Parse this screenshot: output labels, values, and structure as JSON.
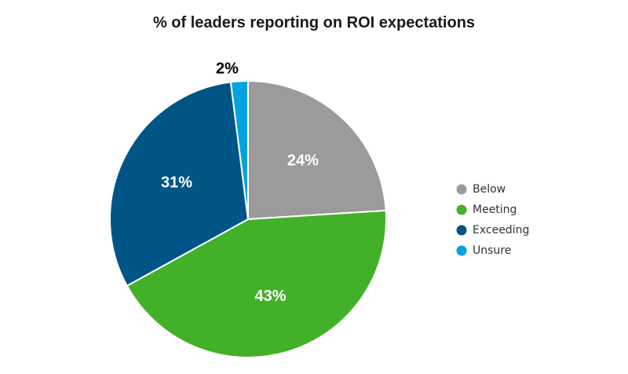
{
  "chart_data": {
    "type": "pie",
    "title": "% of leaders reporting on ROI expectations",
    "categories": [
      "Below",
      "Meeting",
      "Exceeding",
      "Unsure"
    ],
    "values": [
      24,
      43,
      31,
      2
    ],
    "labels": [
      "24%",
      "43%",
      "31%",
      "2%"
    ],
    "colors": [
      "#9b9b9b",
      "#43b02a",
      "#005587",
      "#00a3e0"
    ],
    "label_colors": [
      "#ffffff",
      "#ffffff",
      "#ffffff",
      "#000000"
    ],
    "legend": "right",
    "start_angle_deg": 0,
    "direction": "clockwise"
  }
}
